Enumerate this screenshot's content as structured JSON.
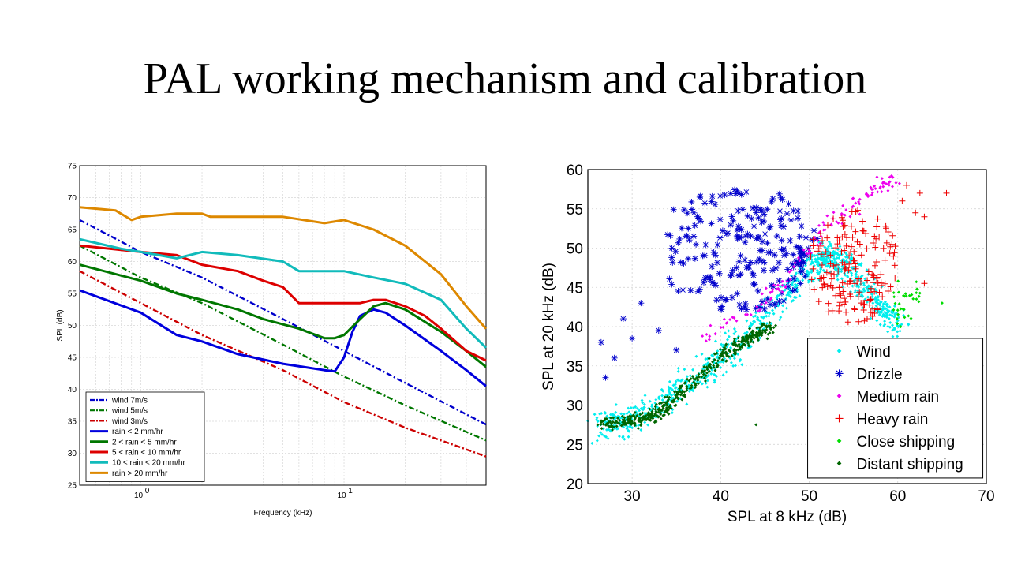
{
  "slide": {
    "title": "PAL working mechanism and calibration"
  },
  "chart_data": [
    {
      "type": "line",
      "title": "",
      "xlabel": "Frequency (kHz)",
      "ylabel": "SPL (dB)",
      "xscale": "log",
      "xlim": [
        0.5,
        50
      ],
      "ylim": [
        25,
        75
      ],
      "grid": true,
      "legend_position": "bottom-left",
      "x_tick_labels": [
        "10^0",
        "10^1"
      ],
      "y_ticks": [
        25,
        30,
        35,
        40,
        45,
        50,
        55,
        60,
        65,
        70,
        75
      ],
      "series": [
        {
          "name": "wind 7m/s",
          "color": "#0000cc",
          "style": "dashdot",
          "points": [
            [
              0.5,
              66.5
            ],
            [
              1,
              61.5
            ],
            [
              2,
              57.5
            ],
            [
              5,
              51
            ],
            [
              10,
              46
            ],
            [
              20,
              41
            ],
            [
              50,
              34.5
            ]
          ]
        },
        {
          "name": "wind 5m/s",
          "color": "#007700",
          "style": "dashdot",
          "points": [
            [
              0.5,
              62.5
            ],
            [
              1,
              57.5
            ],
            [
              2,
              53.5
            ],
            [
              5,
              47
            ],
            [
              10,
              42
            ],
            [
              20,
              37.5
            ],
            [
              50,
              32
            ]
          ]
        },
        {
          "name": "wind 3m/s",
          "color": "#cc0000",
          "style": "dashdot",
          "points": [
            [
              0.5,
              58.5
            ],
            [
              1,
              53.5
            ],
            [
              2,
              48.5
            ],
            [
              5,
              43
            ],
            [
              10,
              38
            ],
            [
              20,
              34
            ],
            [
              50,
              29.5
            ]
          ]
        },
        {
          "name": "rain < 2 mm/hr",
          "color": "#0000dd",
          "style": "solid",
          "points": [
            [
              0.5,
              55.5
            ],
            [
              1,
              52
            ],
            [
              1.5,
              48.5
            ],
            [
              2,
              47.5
            ],
            [
              3,
              45.5
            ],
            [
              5,
              44
            ],
            [
              8,
              43
            ],
            [
              9,
              42.8
            ],
            [
              10,
              45
            ],
            [
              11,
              49
            ],
            [
              12,
              51.5
            ],
            [
              14,
              52.5
            ],
            [
              16,
              52
            ],
            [
              20,
              50
            ],
            [
              30,
              46
            ],
            [
              40,
              43
            ],
            [
              50,
              40.5
            ]
          ]
        },
        {
          "name": "2 < rain < 5 mm/hr",
          "color": "#007700",
          "style": "solid",
          "points": [
            [
              0.5,
              59.5
            ],
            [
              1,
              57
            ],
            [
              1.5,
              55
            ],
            [
              2,
              54
            ],
            [
              3,
              52.5
            ],
            [
              4,
              51
            ],
            [
              6,
              49.5
            ],
            [
              8,
              48
            ],
            [
              9,
              48
            ],
            [
              10,
              48.5
            ],
            [
              12,
              51
            ],
            [
              14,
              53
            ],
            [
              16,
              53.5
            ],
            [
              20,
              52.5
            ],
            [
              30,
              49
            ],
            [
              40,
              46
            ],
            [
              50,
              43.5
            ]
          ]
        },
        {
          "name": "5 < rain < 10 mm/hr",
          "color": "#dd0000",
          "style": "solid",
          "points": [
            [
              0.5,
              62.5
            ],
            [
              1,
              61.5
            ],
            [
              1.5,
              61
            ],
            [
              2,
              59.5
            ],
            [
              3,
              58.5
            ],
            [
              4,
              57
            ],
            [
              5,
              56
            ],
            [
              6,
              53.5
            ],
            [
              8,
              53.5
            ],
            [
              10,
              53.5
            ],
            [
              12,
              53.5
            ],
            [
              14,
              54
            ],
            [
              16,
              54
            ],
            [
              20,
              53
            ],
            [
              25,
              51.5
            ],
            [
              30,
              49.5
            ],
            [
              40,
              46
            ],
            [
              50,
              44.5
            ]
          ]
        },
        {
          "name": "10 < rain < 20 mm/hr",
          "color": "#11bbbb",
          "style": "solid",
          "points": [
            [
              0.5,
              63.5
            ],
            [
              0.8,
              62
            ],
            [
              1,
              61.5
            ],
            [
              1.5,
              60.5
            ],
            [
              2,
              61.5
            ],
            [
              3,
              61
            ],
            [
              5,
              60
            ],
            [
              6,
              58.5
            ],
            [
              8,
              58.5
            ],
            [
              10,
              58.5
            ],
            [
              14,
              57.5
            ],
            [
              20,
              56.5
            ],
            [
              30,
              54
            ],
            [
              40,
              49.5
            ],
            [
              50,
              46.5
            ]
          ]
        },
        {
          "name": "rain > 20 mm/hr",
          "color": "#dd8800",
          "style": "solid",
          "points": [
            [
              0.5,
              68.5
            ],
            [
              0.75,
              68
            ],
            [
              0.9,
              66.5
            ],
            [
              1,
              67
            ],
            [
              1.5,
              67.5
            ],
            [
              2,
              67.5
            ],
            [
              2.2,
              67
            ],
            [
              3,
              67
            ],
            [
              5,
              67
            ],
            [
              8,
              66
            ],
            [
              10,
              66.5
            ],
            [
              14,
              65
            ],
            [
              20,
              62.5
            ],
            [
              30,
              58
            ],
            [
              40,
              53
            ],
            [
              50,
              49.5
            ]
          ]
        }
      ]
    },
    {
      "type": "scatter",
      "title": "",
      "xlabel": "SPL at 8 kHz (dB)",
      "ylabel": "SPL at 20 kHz (dB)",
      "xlim": [
        25,
        70
      ],
      "ylim": [
        20,
        60
      ],
      "x_ticks": [
        30,
        40,
        50,
        60,
        70
      ],
      "y_ticks": [
        20,
        25,
        30,
        35,
        40,
        45,
        50,
        55,
        60
      ],
      "grid": true,
      "legend_position": "bottom-right",
      "series": [
        {
          "name": "Wind",
          "color": "#00eeee",
          "marker": "dot",
          "region": {
            "type": "band",
            "x": [
              [
                26,
                27.5
              ],
              [
                30,
                28
              ],
              [
                35,
                31.5
              ],
              [
                40,
                36
              ],
              [
                45,
                41
              ],
              [
                50,
                47.5
              ],
              [
                52,
                49
              ],
              [
                54,
                48
              ],
              [
                57,
                44
              ],
              [
                60,
                40
              ]
            ],
            "spread": 2.6,
            "count": 900
          }
        },
        {
          "name": "Drizzle",
          "color": "#0000cc",
          "marker": "asterisk",
          "region": {
            "type": "cloud",
            "center": [
              42,
              50
            ],
            "sx": [
              34,
              52
            ],
            "sy": [
              42,
              58
            ],
            "count": 320,
            "outliers": [
              [
                26.5,
                38
              ],
              [
                27,
                33.5
              ],
              [
                28,
                36
              ],
              [
                29,
                41
              ],
              [
                30,
                38.5
              ],
              [
                31,
                43
              ],
              [
                33,
                39.5
              ],
              [
                35,
                37
              ]
            ]
          }
        },
        {
          "name": "Medium rain",
          "color": "#ee00ee",
          "marker": "dot",
          "region": {
            "type": "band",
            "x": [
              [
                38,
                38.5
              ],
              [
                42,
                41
              ],
              [
                46,
                44.5
              ],
              [
                49,
                48
              ],
              [
                52,
                53
              ],
              [
                55,
                55.5
              ],
              [
                58,
                58
              ],
              [
                60,
                59
              ]
            ],
            "spread": 1.4,
            "count": 130
          }
        },
        {
          "name": "Heavy rain",
          "color": "#ee0000",
          "marker": "plus",
          "region": {
            "type": "cloud",
            "center": [
              55,
              48
            ],
            "sx": [
              50,
              60
            ],
            "sy": [
              40,
              55
            ],
            "count": 220,
            "outliers": [
              [
                60.5,
                56
              ],
              [
                61,
                58
              ],
              [
                62,
                54.5
              ],
              [
                62.5,
                57
              ],
              [
                63,
                54
              ],
              [
                65.5,
                57
              ],
              [
                63,
                45.5
              ]
            ]
          }
        },
        {
          "name": "Close shipping",
          "color": "#00dd00",
          "marker": "dot",
          "region": {
            "type": "cloud",
            "center": [
              61,
              43
            ],
            "sx": [
              59.5,
              63
            ],
            "sy": [
              39,
              46
            ],
            "count": 45,
            "outliers": [
              [
                65,
                43
              ]
            ]
          }
        },
        {
          "name": "Distant shipping",
          "color": "#006600",
          "marker": "dot",
          "region": {
            "type": "band",
            "x": [
              [
                26.5,
                27.5
              ],
              [
                30,
                28
              ],
              [
                33,
                29
              ],
              [
                36,
                32
              ],
              [
                40,
                36
              ],
              [
                43,
                38.5
              ],
              [
                46,
                40
              ]
            ],
            "spread": 1.3,
            "count": 420,
            "outliers": [
              [
                44,
                27.5
              ]
            ]
          }
        }
      ]
    }
  ]
}
